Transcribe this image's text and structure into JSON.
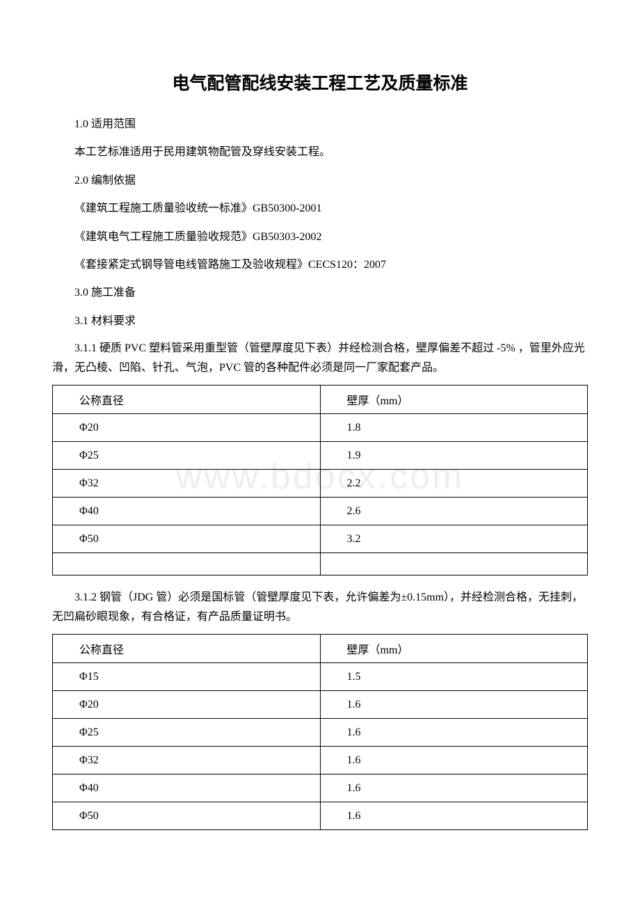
{
  "watermark": "www.bdocx.com",
  "title": "电气配管配线安装工程工艺及质量标准",
  "sections": {
    "s1_0": "1.0 适用范围",
    "s1_0_body": "本工艺标准适用于民用建筑物配管及穿线安装工程。",
    "s2_0": "2.0 编制依据",
    "s2_0_ref1": "《建筑工程施工质量验收统一标准》GB50300-2001",
    "s2_0_ref2": "《建筑电气工程施工质量验收规范》GB50303-2002",
    "s2_0_ref3": "《套接紧定式钢导管电线管路施工及验收规程》CECS120：2007",
    "s3_0": "3.0 施工准备",
    "s3_1": "3.1 材料要求",
    "s3_1_1": "3.1.1 硬质 PVC 塑料管采用重型管（管壁厚度见下表）并经检测合格，壁厚偏差不超过 -5% ，管里外应光滑，无凸棱、凹陷、针孔、气泡，PVC 管的各种配件必须是同一厂家配套产品。",
    "s3_1_2": "3.1.2 钢管（JDG 管）必须是国标管（管壁厚度见下表，允许偏差为±0.15mm），并经检测合格，无挂刺，无凹扁砂眼现象，有合格证，有产品质量证明书。"
  },
  "table1": {
    "header": {
      "col1": "公称直径",
      "col2": "壁厚（mm）"
    },
    "rows": [
      {
        "col1": "Φ20",
        "col2": "1.8"
      },
      {
        "col1": "Φ25",
        "col2": "1.9"
      },
      {
        "col1": "Φ32",
        "col2": "2.2"
      },
      {
        "col1": "Φ40",
        "col2": "2.6"
      },
      {
        "col1": "Φ50",
        "col2": "3.2"
      }
    ],
    "has_empty_row": true
  },
  "table2": {
    "header": {
      "col1": "公称直径",
      "col2": "壁厚（mm）"
    },
    "rows": [
      {
        "col1": "Φ15",
        "col2": "1.5"
      },
      {
        "col1": "Φ20",
        "col2": "1.6"
      },
      {
        "col1": "Φ25",
        "col2": "1.6"
      },
      {
        "col1": "Φ32",
        "col2": "1.6"
      },
      {
        "col1": "Φ40",
        "col2": "1.6"
      },
      {
        "col1": "Φ50",
        "col2": "1.6"
      }
    ],
    "has_empty_row": false
  }
}
